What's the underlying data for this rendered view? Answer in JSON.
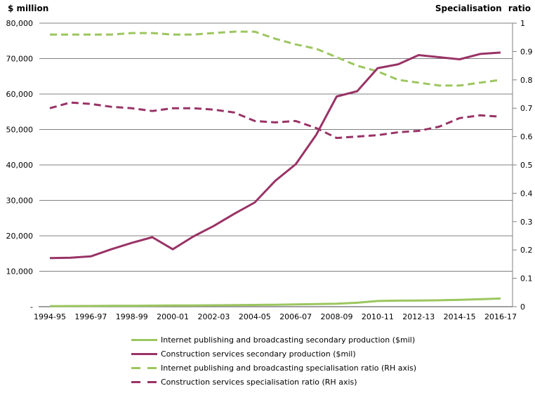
{
  "chart_data": {
    "type": "line",
    "title": "",
    "left_axis": {
      "title": "$ million",
      "min": 0,
      "max": 80000,
      "tick_step": 10000,
      "tick_labels": [
        "-",
        "10,000",
        "20,000",
        "30,000",
        "40,000",
        "50,000",
        "60,000",
        "70,000",
        "80,000"
      ]
    },
    "right_axis": {
      "title": "Specialisation ratio",
      "min": 0,
      "max": 1,
      "tick_step": 0.1,
      "tick_labels": [
        "0",
        "0.1",
        "0.2",
        "0.3",
        "0.4",
        "0.5",
        "0.6",
        "0.7",
        "0.8",
        "0.9",
        "1"
      ]
    },
    "categories": [
      "1994-95",
      "1995-96",
      "1996-97",
      "1997-98",
      "1998-99",
      "1999-00",
      "2000-01",
      "2001-02",
      "2002-03",
      "2003-04",
      "2004-05",
      "2005-06",
      "2006-07",
      "2007-08",
      "2008-09",
      "2009-10",
      "2010-11",
      "2011-12",
      "2012-13",
      "2013-14",
      "2014-15",
      "2015-16",
      "2016-17"
    ],
    "x_tick_labels": [
      "1994-95",
      "1996-97",
      "1998-99",
      "2000-01",
      "2002-03",
      "2004-05",
      "2006-07",
      "2008-09",
      "2010-11",
      "2012-13",
      "2014-15",
      "2016-17"
    ],
    "series": [
      {
        "name": "Internet publishing and broadcasting secondary production ($mil)",
        "axis": "left",
        "style": "solid",
        "color": "#9CC65F",
        "values": [
          150,
          170,
          200,
          230,
          260,
          300,
          330,
          360,
          400,
          440,
          490,
          560,
          650,
          750,
          850,
          1100,
          1600,
          1700,
          1750,
          1800,
          1950,
          2100,
          2300
        ]
      },
      {
        "name": "Construction services secondary production ($mil)",
        "axis": "left",
        "style": "solid",
        "color": "#993366",
        "values": [
          13700,
          13800,
          14200,
          16200,
          18000,
          19600,
          16200,
          19800,
          22800,
          26200,
          29400,
          35500,
          40200,
          48500,
          59300,
          60800,
          67300,
          68400,
          71000,
          70400,
          69800,
          71300,
          71700
        ]
      },
      {
        "name": "Internet publishing and broadcasting specialisation ratio (RH axis)",
        "axis": "right",
        "style": "dashed",
        "color": "#9CC65F",
        "values": [
          0.96,
          0.96,
          0.96,
          0.96,
          0.965,
          0.965,
          0.96,
          0.96,
          0.965,
          0.97,
          0.97,
          0.945,
          0.925,
          0.91,
          0.88,
          0.85,
          0.83,
          0.8,
          0.79,
          0.78,
          0.78,
          0.79,
          0.8
        ]
      },
      {
        "name": "Construction services specialisation ratio (RH axis)",
        "axis": "right",
        "style": "dashed",
        "color": "#993366",
        "values": [
          0.7,
          0.72,
          0.715,
          0.705,
          0.7,
          0.69,
          0.7,
          0.7,
          0.695,
          0.685,
          0.655,
          0.65,
          0.655,
          0.63,
          0.595,
          0.6,
          0.605,
          0.615,
          0.62,
          0.635,
          0.665,
          0.675,
          0.67
        ]
      }
    ],
    "grid": "horizontal",
    "legend_position": "bottom",
    "colors": {
      "gridline": "#808080",
      "axis_line": "#808080",
      "text": "#000000"
    }
  }
}
